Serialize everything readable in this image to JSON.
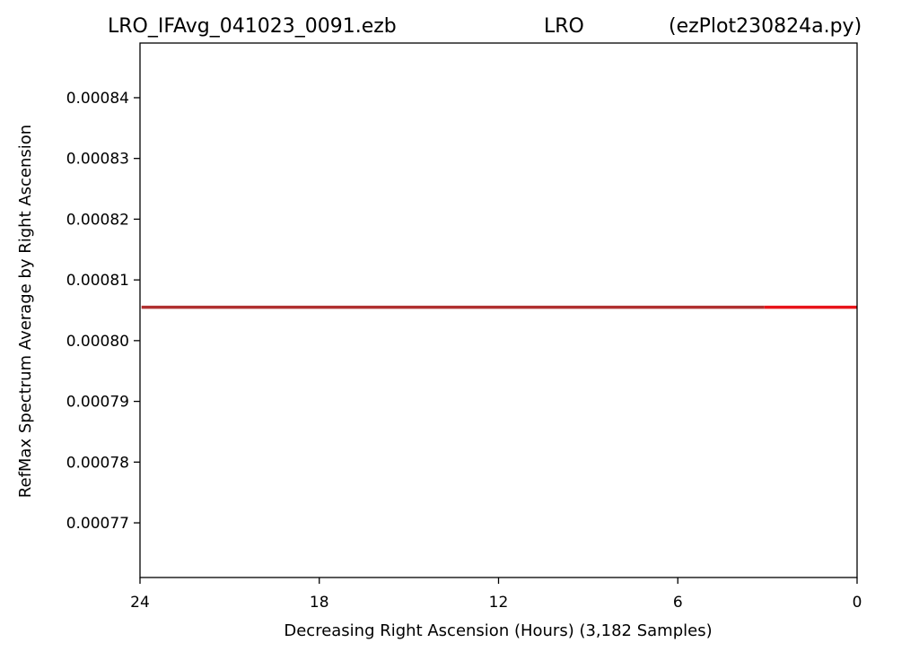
{
  "title": {
    "left": "LRO_IFAvg_041023_0091.ezb",
    "center": "LRO",
    "right": "(ezPlot230824a.py)"
  },
  "chart_data": {
    "type": "line",
    "title": "LRO_IFAvg_041023_0091.ezb LRO (ezPlot230824a.py)",
    "xlabel": "Decreasing Right Ascension (Hours) (3,182 Samples)",
    "ylabel": "RefMax Spectrum Average by Right Ascension",
    "xlim": [
      24,
      0
    ],
    "ylim": [
      0.000761,
      0.000849
    ],
    "x_ticks": [
      24,
      18,
      12,
      6,
      0
    ],
    "x_tick_labels": [
      "24",
      "18",
      "12",
      "6",
      "0"
    ],
    "y_ticks": [
      0.00077,
      0.00078,
      0.00079,
      0.0008,
      0.00081,
      0.00082,
      0.00083,
      0.00084
    ],
    "y_tick_labels": [
      "0.00077",
      "0.00078",
      "0.00079",
      "0.00080",
      "0.00081",
      "0.00082",
      "0.00083",
      "0.00084"
    ],
    "grid": false,
    "series": [
      {
        "color": "#b03030",
        "x": [
          23.95,
          3.1
        ],
        "y": [
          0.0008055,
          0.0008055
        ]
      },
      {
        "color": "#e8141a",
        "x": [
          3.1,
          0
        ],
        "y": [
          0.0008055,
          0.0008055
        ]
      }
    ]
  }
}
